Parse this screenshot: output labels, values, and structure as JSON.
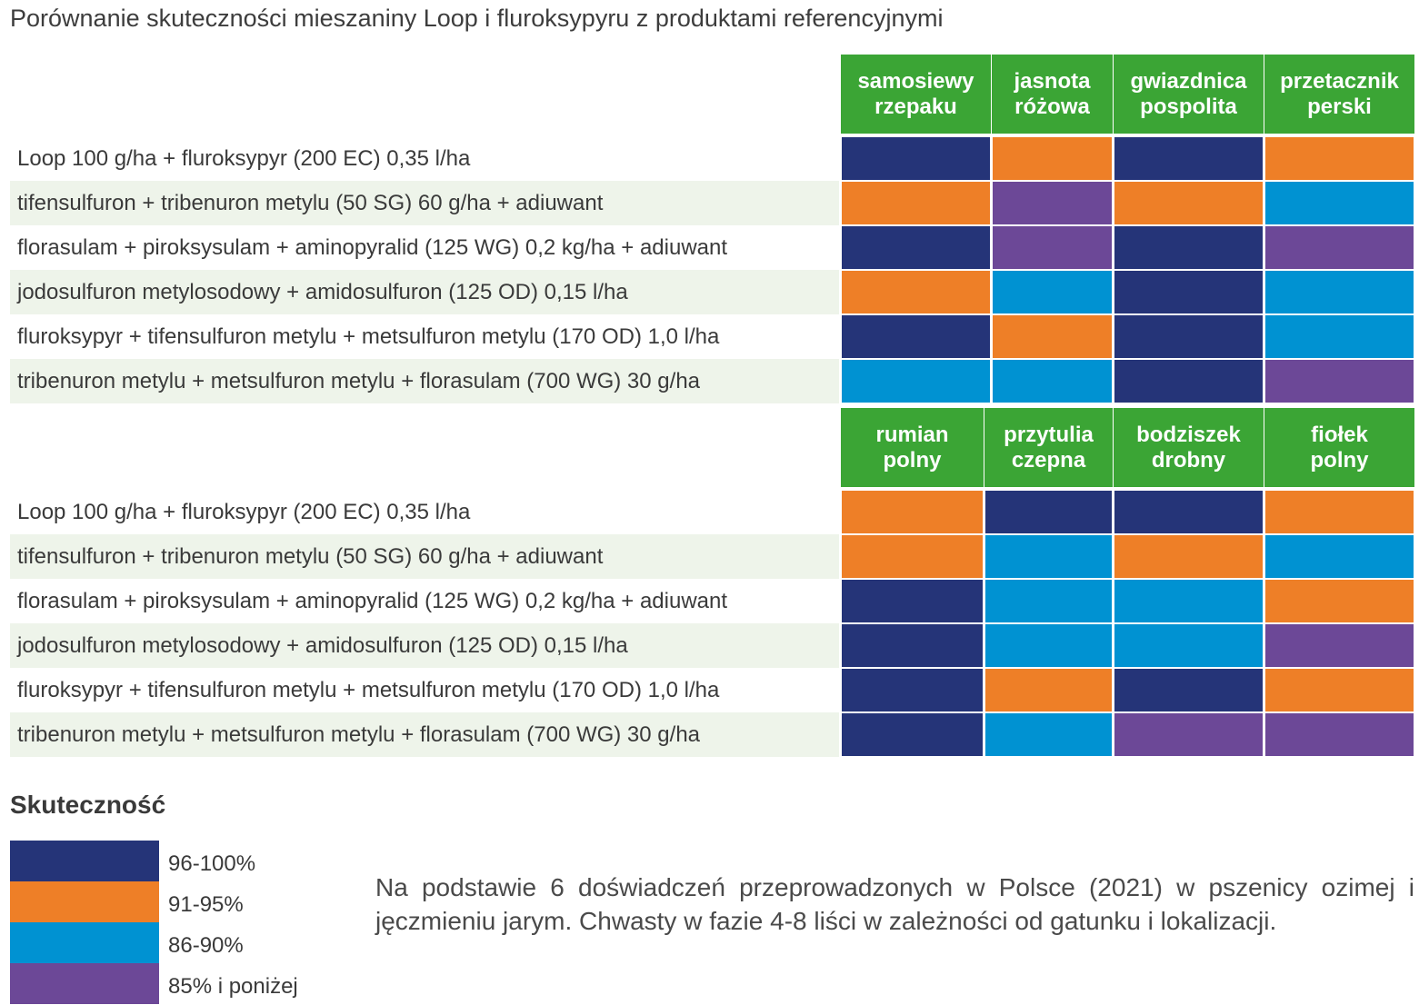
{
  "title": "Porównanie skuteczności mieszaniny Loop i fluroksypyru z produktami referencyjnymi",
  "colors": {
    "header_green": "#3ba535",
    "row_stripe": "#eef4ea",
    "level_1": "#253478",
    "level_2": "#ee7f27",
    "level_3": "#0092d2",
    "level_4": "#6c4897"
  },
  "legend": {
    "title": "Skuteczność",
    "items": [
      {
        "key": "level_1",
        "label": "96-100%",
        "color": "#253478"
      },
      {
        "key": "level_2",
        "label": "91-95%",
        "color": "#ee7f27"
      },
      {
        "key": "level_3",
        "label": "86-90%",
        "color": "#0092d2"
      },
      {
        "key": "level_4",
        "label": "85% i poniżej",
        "color": "#6c4897"
      }
    ]
  },
  "note": "Na podstawie 6 doświadczeń przeprowadzonych w Polsce (2021) w pszenicy ozimej i jęczmieniu jarym. Chwasty w fazie 4-8 liści w zależności od gatunku i lokalizacji.",
  "chart_data": [
    {
      "type": "heatmap",
      "title": "Porównanie skuteczności mieszaniny Loop i fluroksypyru z produktami referencyjnymi",
      "columns": [
        {
          "line1": "samosiewy",
          "line2": "rzepaku"
        },
        {
          "line1": "jasnota",
          "line2": "różowa"
        },
        {
          "line1": "gwiazdnica",
          "line2": "pospolita"
        },
        {
          "line1": "przetacznik",
          "line2": "perski"
        }
      ],
      "rows": [
        "Loop 100 g/ha + fluroksypyr (200 EC) 0,35 l/ha",
        "tifensulfuron + tribenuron metylu (50 SG) 60 g/ha + adiuwant",
        "florasulam + piroksysulam + aminopyralid (125 WG) 0,2 kg/ha + adiuwant",
        "jodosulfuron metylosodowy + amidosulfuron (125 OD) 0,15 l/ha",
        "fluroksypyr + tifensulfuron metylu + metsulfuron metylu (170 OD) 1,0 l/ha",
        "tribenuron metylu + metsulfuron metylu + florasulam (700 WG) 30 g/ha"
      ],
      "values": [
        [
          "96-100%",
          "91-95%",
          "96-100%",
          "91-95%"
        ],
        [
          "91-95%",
          "85% i poniżej",
          "91-95%",
          "86-90%"
        ],
        [
          "96-100%",
          "85% i poniżej",
          "96-100%",
          "85% i poniżej"
        ],
        [
          "91-95%",
          "86-90%",
          "96-100%",
          "86-90%"
        ],
        [
          "96-100%",
          "91-95%",
          "96-100%",
          "86-90%"
        ],
        [
          "86-90%",
          "86-90%",
          "96-100%",
          "85% i poniżej"
        ]
      ],
      "value_keys": [
        [
          "level_1",
          "level_2",
          "level_1",
          "level_2"
        ],
        [
          "level_2",
          "level_4",
          "level_2",
          "level_3"
        ],
        [
          "level_1",
          "level_4",
          "level_1",
          "level_4"
        ],
        [
          "level_2",
          "level_3",
          "level_1",
          "level_3"
        ],
        [
          "level_1",
          "level_2",
          "level_1",
          "level_3"
        ],
        [
          "level_3",
          "level_3",
          "level_1",
          "level_4"
        ]
      ]
    },
    {
      "type": "heatmap",
      "columns": [
        {
          "line1": "rumian",
          "line2": "polny"
        },
        {
          "line1": "przytulia",
          "line2": "czepna"
        },
        {
          "line1": "bodziszek",
          "line2": "drobny"
        },
        {
          "line1": "fiołek",
          "line2": "polny"
        }
      ],
      "rows": [
        "Loop 100 g/ha + fluroksypyr (200 EC) 0,35 l/ha",
        "tifensulfuron + tribenuron metylu (50 SG) 60 g/ha + adiuwant",
        "florasulam + piroksysulam + aminopyralid (125 WG) 0,2 kg/ha + adiuwant",
        "jodosulfuron metylosodowy + amidosulfuron (125 OD) 0,15 l/ha",
        "fluroksypyr + tifensulfuron metylu + metsulfuron metylu (170 OD) 1,0 l/ha",
        "tribenuron metylu + metsulfuron metylu + florasulam (700 WG) 30 g/ha"
      ],
      "values": [
        [
          "91-95%",
          "96-100%",
          "96-100%",
          "91-95%"
        ],
        [
          "91-95%",
          "86-90%",
          "91-95%",
          "86-90%"
        ],
        [
          "96-100%",
          "86-90%",
          "86-90%",
          "91-95%"
        ],
        [
          "96-100%",
          "86-90%",
          "86-90%",
          "85% i poniżej"
        ],
        [
          "96-100%",
          "91-95%",
          "96-100%",
          "91-95%"
        ],
        [
          "96-100%",
          "86-90%",
          "85% i poniżej",
          "85% i poniżej"
        ]
      ],
      "value_keys": [
        [
          "level_2",
          "level_1",
          "level_1",
          "level_2"
        ],
        [
          "level_2",
          "level_3",
          "level_2",
          "level_3"
        ],
        [
          "level_1",
          "level_3",
          "level_3",
          "level_2"
        ],
        [
          "level_1",
          "level_3",
          "level_3",
          "level_4"
        ],
        [
          "level_1",
          "level_2",
          "level_1",
          "level_2"
        ],
        [
          "level_1",
          "level_3",
          "level_4",
          "level_4"
        ]
      ]
    }
  ]
}
